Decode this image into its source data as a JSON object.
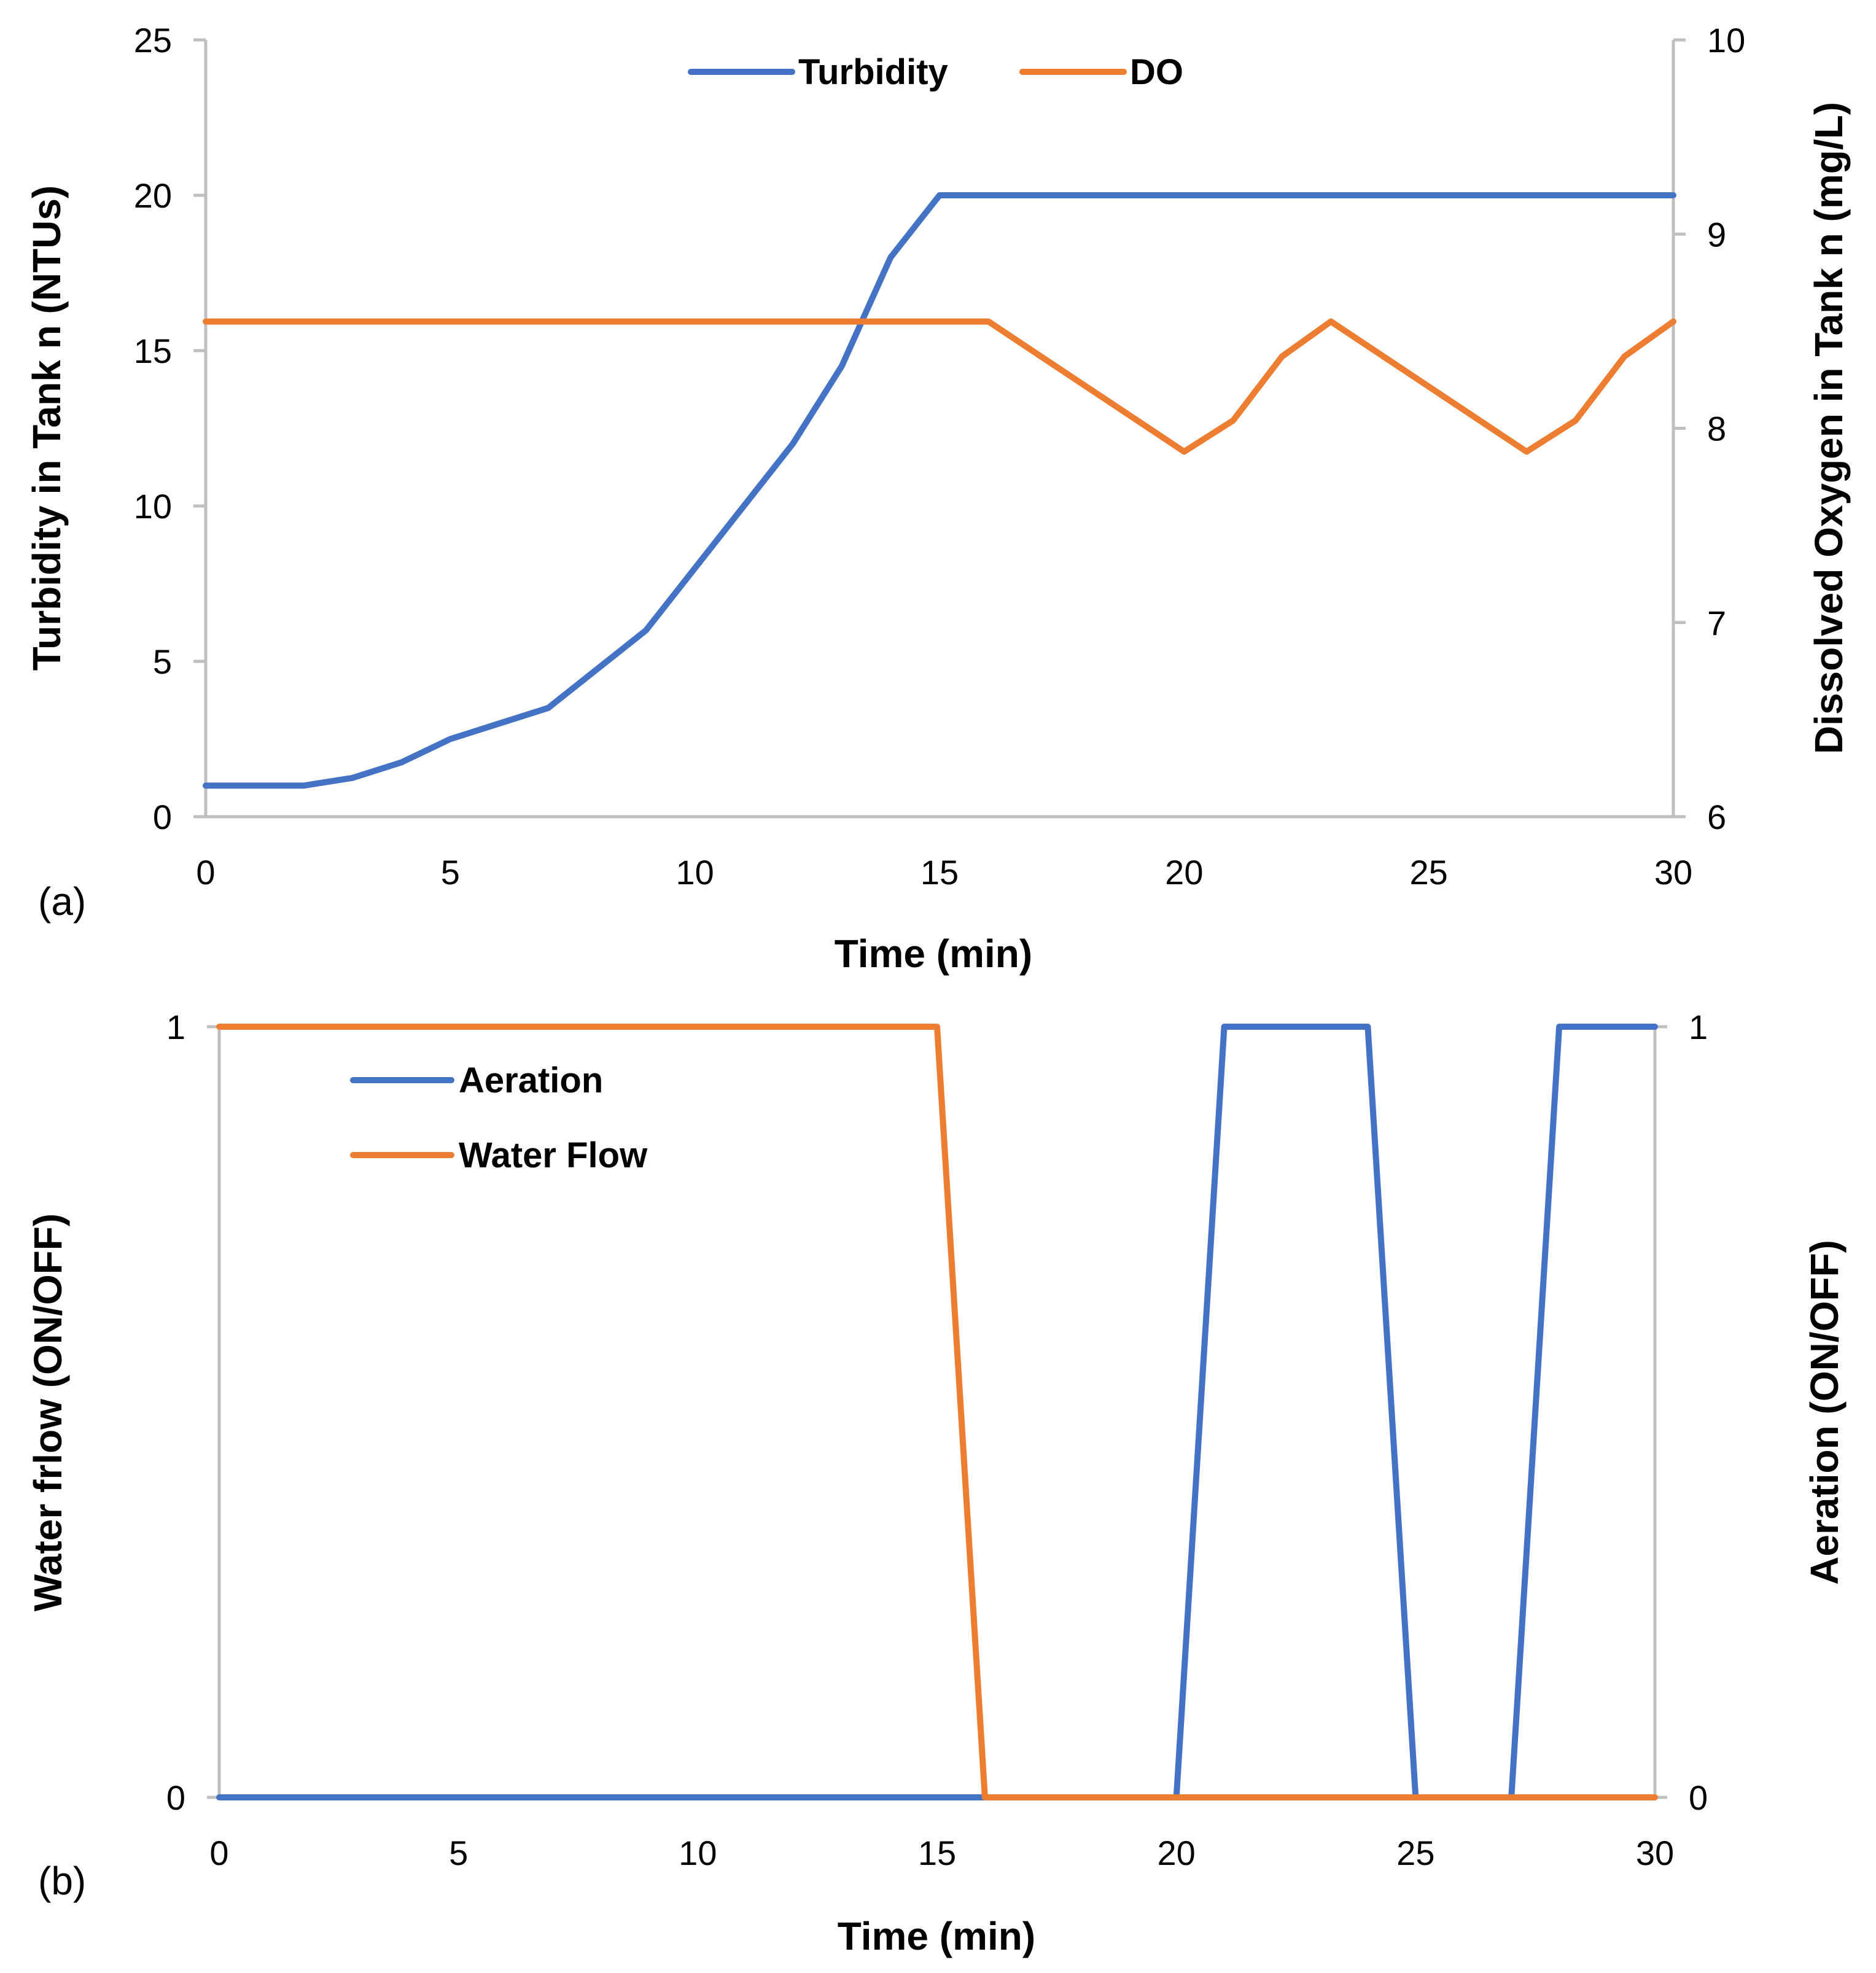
{
  "colors": {
    "blue": "#4472c4",
    "orange": "#ed7d31",
    "axis": "#bfbfbf"
  },
  "chart_data": [
    {
      "type": "line",
      "panel_label": "(a)",
      "xlabel": "Time (min)",
      "ylabel_left": "Turbidity in Tank n (NTUs)",
      "ylabel_right": "Dissolved Oxygen in Tank n (mg/L)",
      "xlim": [
        0,
        30
      ],
      "ylim_left": [
        0,
        25
      ],
      "ylim_right": [
        6,
        10
      ],
      "xticks": [
        "0",
        "5",
        "10",
        "15",
        "20",
        "25",
        "30"
      ],
      "yticks_left": [
        "0",
        "5",
        "10",
        "15",
        "20",
        "25"
      ],
      "yticks_right": [
        "6",
        "7",
        "8",
        "9",
        "10"
      ],
      "legend_position": "top-center",
      "series": [
        {
          "name": "Turbidity",
          "axis": "left",
          "color": "#4472c4",
          "x": [
            0,
            1,
            2,
            3,
            4,
            5,
            6,
            7,
            8,
            9,
            10,
            11,
            12,
            13,
            14,
            15,
            16,
            17,
            18,
            19,
            20,
            21,
            22,
            23,
            24,
            25,
            26,
            27,
            28,
            29,
            30
          ],
          "y": [
            1,
            1,
            1,
            1.25,
            1.75,
            2.5,
            3,
            3.5,
            4.75,
            6,
            8,
            10,
            12,
            14.5,
            18,
            20,
            20,
            20,
            20,
            20,
            20,
            20,
            20,
            20,
            20,
            20,
            20,
            20,
            20,
            20,
            20
          ]
        },
        {
          "name": "DO",
          "axis": "right",
          "color": "#ed7d31",
          "x": [
            0,
            16,
            20,
            21,
            22,
            23,
            27,
            28,
            29,
            30
          ],
          "y": [
            8.55,
            8.55,
            7.88,
            8.04,
            8.37,
            8.55,
            7.88,
            8.04,
            8.37,
            8.55
          ]
        }
      ]
    },
    {
      "type": "line",
      "panel_label": "(b)",
      "xlabel": "Time (min)",
      "ylabel_left": "Water frlow (ON/OFF)",
      "ylabel_right": "Aeration (ON/OFF)",
      "xlim": [
        0,
        30
      ],
      "ylim_left": [
        0,
        1
      ],
      "ylim_right": [
        0,
        1
      ],
      "xticks": [
        "0",
        "5",
        "10",
        "15",
        "20",
        "25",
        "30"
      ],
      "yticks_left": [
        "0",
        "1"
      ],
      "yticks_right": [
        "0",
        "1"
      ],
      "legend_position": "top-left",
      "series": [
        {
          "name": "Aeration",
          "axis": "right",
          "color": "#4472c4",
          "x": [
            0,
            20,
            21,
            24,
            25,
            27,
            28,
            30
          ],
          "y": [
            0,
            0,
            1,
            1,
            0,
            0,
            1,
            1
          ]
        },
        {
          "name": "Water Flow",
          "axis": "left",
          "color": "#ed7d31",
          "x": [
            0,
            15,
            16,
            30
          ],
          "y": [
            1,
            1,
            0,
            0
          ]
        }
      ]
    }
  ]
}
